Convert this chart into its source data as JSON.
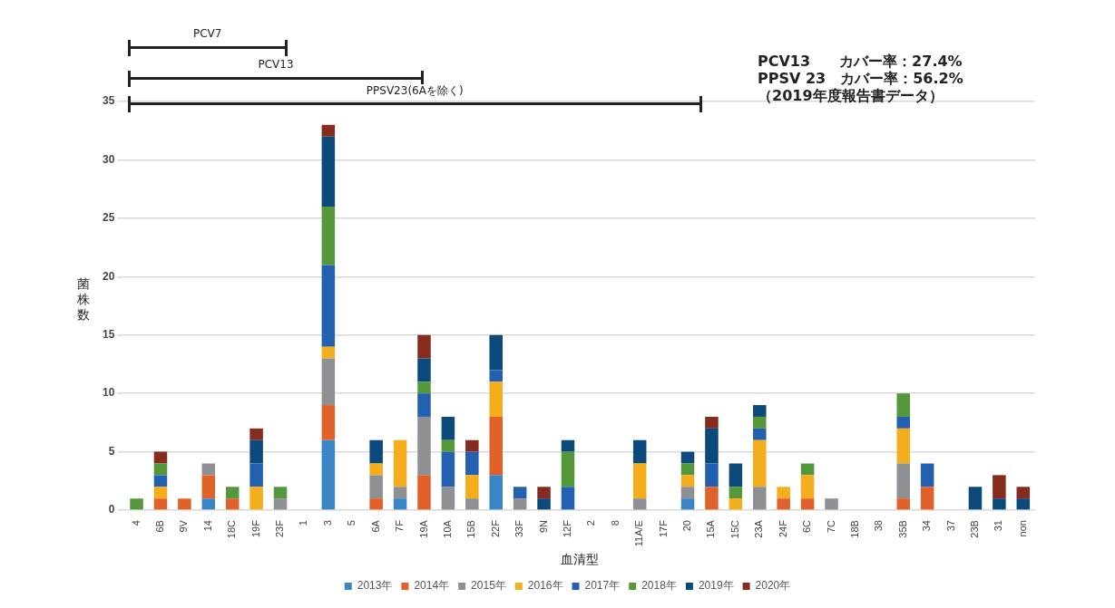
{
  "chart_data": {
    "type": "bar",
    "stacked": true,
    "xlabel": "血清型",
    "ylabel": "菌株数",
    "categories": [
      "4",
      "6B",
      "9V",
      "14",
      "18C",
      "19F",
      "23F",
      "1",
      "3",
      "5",
      "6A",
      "7F",
      "19A",
      "10A",
      "15B",
      "22F",
      "33F",
      "9N",
      "12F",
      "2",
      "8",
      "11A/E",
      "17F",
      "20",
      "15A",
      "15C",
      "23A",
      "24F",
      "6C",
      "7C",
      "18B",
      "38",
      "35B",
      "34",
      "37",
      "23B",
      "31",
      "non"
    ],
    "series": [
      {
        "name": "2013年",
        "color": "#3a85c5",
        "values": [
          0,
          0,
          0,
          1,
          0,
          0,
          0,
          0,
          6,
          0,
          0,
          1,
          0,
          0,
          0,
          3,
          0,
          0,
          0,
          0,
          0,
          0,
          0,
          1,
          0,
          0,
          0,
          0,
          0,
          0,
          0,
          0,
          0,
          0,
          0,
          0,
          0,
          0
        ]
      },
      {
        "name": "2014年",
        "color": "#e0622a",
        "values": [
          0,
          1,
          1,
          2,
          1,
          0,
          0,
          0,
          3,
          0,
          1,
          0,
          3,
          0,
          0,
          5,
          0,
          0,
          0,
          0,
          0,
          0,
          0,
          0,
          2,
          0,
          0,
          1,
          1,
          0,
          0,
          0,
          1,
          2,
          0,
          0,
          0,
          0
        ]
      },
      {
        "name": "2015年",
        "color": "#8e9094",
        "values": [
          0,
          0,
          0,
          1,
          0,
          0,
          1,
          0,
          4,
          0,
          2,
          1,
          5,
          2,
          1,
          0,
          1,
          0,
          0,
          0,
          0,
          1,
          0,
          1,
          0,
          0,
          2,
          0,
          0,
          1,
          0,
          0,
          3,
          0,
          0,
          0,
          0,
          0
        ]
      },
      {
        "name": "2016年",
        "color": "#f3ad1d",
        "values": [
          0,
          1,
          0,
          0,
          0,
          2,
          0,
          0,
          1,
          0,
          1,
          4,
          0,
          0,
          2,
          3,
          0,
          0,
          0,
          0,
          0,
          3,
          0,
          1,
          0,
          1,
          4,
          1,
          2,
          0,
          0,
          0,
          3,
          0,
          0,
          0,
          0,
          0
        ]
      },
      {
        "name": "2017年",
        "color": "#2460b0",
        "values": [
          0,
          1,
          0,
          0,
          0,
          2,
          0,
          0,
          7,
          0,
          0,
          0,
          2,
          3,
          2,
          1,
          1,
          0,
          2,
          0,
          0,
          0,
          0,
          0,
          2,
          0,
          1,
          0,
          0,
          0,
          0,
          0,
          1,
          2,
          0,
          0,
          0,
          0
        ]
      },
      {
        "name": "2018年",
        "color": "#55983b",
        "values": [
          1,
          1,
          0,
          0,
          1,
          0,
          1,
          0,
          5,
          0,
          0,
          0,
          1,
          1,
          0,
          0,
          0,
          0,
          3,
          0,
          0,
          0,
          0,
          1,
          0,
          1,
          1,
          0,
          1,
          0,
          0,
          0,
          2,
          0,
          0,
          0,
          0,
          0
        ]
      },
      {
        "name": "2019年",
        "color": "#0b4a7a",
        "values": [
          0,
          0,
          0,
          0,
          0,
          2,
          0,
          0,
          6,
          0,
          2,
          0,
          2,
          2,
          0,
          3,
          0,
          1,
          1,
          0,
          0,
          2,
          0,
          1,
          3,
          2,
          1,
          0,
          0,
          0,
          0,
          0,
          0,
          0,
          0,
          2,
          1,
          1
        ]
      },
      {
        "name": "2020年",
        "color": "#862c1e",
        "values": [
          0,
          1,
          0,
          0,
          0,
          1,
          0,
          0,
          1,
          0,
          0,
          0,
          2,
          0,
          1,
          0,
          0,
          1,
          0,
          0,
          0,
          0,
          0,
          0,
          1,
          0,
          0,
          0,
          0,
          0,
          0,
          0,
          0,
          0,
          0,
          0,
          2,
          1
        ]
      }
    ],
    "ylim": [
      0,
      35
    ],
    "yticks": [
      0,
      5,
      10,
      15,
      20,
      25,
      30,
      35
    ],
    "grid": "y",
    "legend": "bottom",
    "annotations": [
      "PCV7",
      "PCV13",
      "PPSV23(6Aを除く)",
      "PCV13　　カバー率：27.4%",
      "PPSV 23　カバー率：56.2%",
      "（2019年度報告書データ）"
    ]
  }
}
